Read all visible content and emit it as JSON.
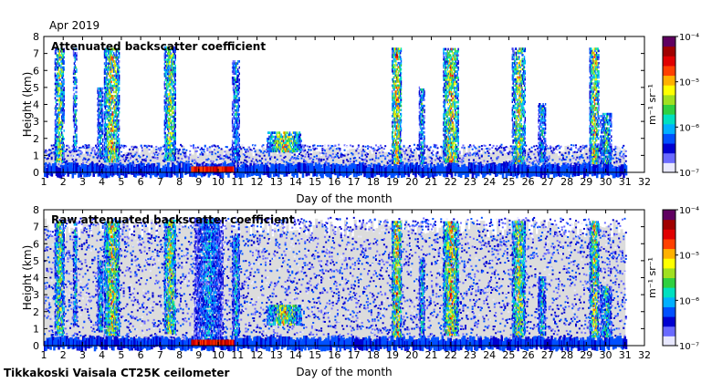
{
  "header": {
    "month_label": "Apr 2019",
    "footer_label": "Tikkakoski Vaisala CT25K ceilometer"
  },
  "colorbar": {
    "unit_label": "m⁻¹ sr⁻¹",
    "tick_labels": [
      "10⁻⁴",
      "10⁻⁵",
      "10⁻⁶",
      "10⁻⁷"
    ],
    "tick_exponents": [
      -4,
      -5,
      -6,
      -7
    ],
    "range_exponent": [
      -7,
      -4
    ],
    "colors": [
      "#e8e8ff",
      "#6a6aff",
      "#0000d0",
      "#0050ff",
      "#00b0ff",
      "#00e0c0",
      "#30d040",
      "#a0e020",
      "#ffff00",
      "#ffb000",
      "#ff4000",
      "#e00000",
      "#a00000",
      "#600060"
    ]
  },
  "chart_data": [
    {
      "type": "heatmap",
      "title": "Attenuated backscatter coefficient",
      "xlabel": "Day of the month",
      "ylabel": "Height (km)",
      "xlim": [
        1,
        32
      ],
      "ylim": [
        0,
        8
      ],
      "x_ticks": [
        1,
        2,
        3,
        4,
        5,
        6,
        7,
        8,
        9,
        10,
        11,
        12,
        13,
        14,
        15,
        16,
        17,
        18,
        19,
        20,
        21,
        22,
        23,
        24,
        25,
        26,
        27,
        28,
        29,
        30,
        31,
        32
      ],
      "y_ticks": [
        0,
        1,
        2,
        3,
        4,
        5,
        6,
        7,
        8
      ],
      "grid": false,
      "colorscale": "log",
      "missing_days": [
        [
          8.1,
          8.3
        ]
      ],
      "noise_top_km": 1.6,
      "cloud_columns": [
        {
          "day": 1.8,
          "width": 0.5,
          "base": 0.6,
          "top": 7.3,
          "peak": 0.75
        },
        {
          "day": 2.6,
          "width": 0.2,
          "base": 1.2,
          "top": 7.3,
          "peak": 0.55
        },
        {
          "day": 3.9,
          "width": 0.3,
          "base": 0.8,
          "top": 5.0,
          "peak": 0.55
        },
        {
          "day": 4.5,
          "width": 0.8,
          "base": 0.6,
          "top": 7.3,
          "peak": 0.85
        },
        {
          "day": 7.5,
          "width": 0.6,
          "base": 0.7,
          "top": 7.4,
          "peak": 0.8
        },
        {
          "day": 10.9,
          "width": 0.4,
          "base": 0.6,
          "top": 6.5,
          "peak": 0.5
        },
        {
          "day": 13.4,
          "width": 1.8,
          "base": 1.2,
          "top": 2.4,
          "peak": 0.85
        },
        {
          "day": 19.2,
          "width": 0.5,
          "base": 0.5,
          "top": 7.3,
          "peak": 0.95
        },
        {
          "day": 20.5,
          "width": 0.3,
          "base": 0.5,
          "top": 5.0,
          "peak": 0.55
        },
        {
          "day": 22.0,
          "width": 0.8,
          "base": 0.6,
          "top": 7.3,
          "peak": 0.9
        },
        {
          "day": 25.5,
          "width": 0.7,
          "base": 0.5,
          "top": 7.3,
          "peak": 0.8
        },
        {
          "day": 26.7,
          "width": 0.4,
          "base": 0.6,
          "top": 4.0,
          "peak": 0.55
        },
        {
          "day": 29.4,
          "width": 0.5,
          "base": 0.5,
          "top": 7.3,
          "peak": 0.85
        },
        {
          "day": 30.0,
          "width": 0.6,
          "base": 0.5,
          "top": 3.5,
          "peak": 0.6
        }
      ]
    },
    {
      "type": "heatmap",
      "title": "Raw attenuated backscatter coefficient",
      "xlabel": "Day of the month",
      "ylabel": "Height (km)",
      "xlim": [
        1,
        32
      ],
      "ylim": [
        0,
        8
      ],
      "x_ticks": [
        1,
        2,
        3,
        4,
        5,
        6,
        7,
        8,
        9,
        10,
        11,
        12,
        13,
        14,
        15,
        16,
        17,
        18,
        19,
        20,
        21,
        22,
        23,
        24,
        25,
        26,
        27,
        28,
        29,
        30,
        31,
        32
      ],
      "y_ticks": [
        0,
        1,
        2,
        3,
        4,
        5,
        6,
        7,
        8
      ],
      "grid": false,
      "colorscale": "log",
      "missing_days": [
        [
          8.1,
          8.3
        ]
      ],
      "noise_top_km": 7.5,
      "cloud_columns": [
        {
          "day": 1.8,
          "width": 0.5,
          "base": 0.6,
          "top": 7.3,
          "peak": 0.75
        },
        {
          "day": 2.6,
          "width": 0.2,
          "base": 1.2,
          "top": 7.3,
          "peak": 0.55
        },
        {
          "day": 3.9,
          "width": 0.3,
          "base": 0.8,
          "top": 5.0,
          "peak": 0.55
        },
        {
          "day": 4.5,
          "width": 0.8,
          "base": 0.6,
          "top": 7.3,
          "peak": 0.85
        },
        {
          "day": 7.5,
          "width": 0.6,
          "base": 0.7,
          "top": 7.4,
          "peak": 0.8
        },
        {
          "day": 9.5,
          "width": 1.5,
          "base": 0.2,
          "top": 7.5,
          "peak": 0.45
        },
        {
          "day": 10.9,
          "width": 0.4,
          "base": 0.6,
          "top": 6.5,
          "peak": 0.5
        },
        {
          "day": 13.4,
          "width": 1.8,
          "base": 1.2,
          "top": 2.4,
          "peak": 0.85
        },
        {
          "day": 19.2,
          "width": 0.5,
          "base": 0.5,
          "top": 7.3,
          "peak": 0.95
        },
        {
          "day": 20.5,
          "width": 0.3,
          "base": 0.5,
          "top": 5.0,
          "peak": 0.55
        },
        {
          "day": 22.0,
          "width": 0.8,
          "base": 0.6,
          "top": 7.3,
          "peak": 0.9
        },
        {
          "day": 25.5,
          "width": 0.7,
          "base": 0.5,
          "top": 7.3,
          "peak": 0.8
        },
        {
          "day": 26.7,
          "width": 0.4,
          "base": 0.6,
          "top": 4.0,
          "peak": 0.55
        },
        {
          "day": 29.4,
          "width": 0.5,
          "base": 0.5,
          "top": 7.3,
          "peak": 0.85
        },
        {
          "day": 30.0,
          "width": 0.6,
          "base": 0.5,
          "top": 3.5,
          "peak": 0.6
        }
      ]
    }
  ]
}
